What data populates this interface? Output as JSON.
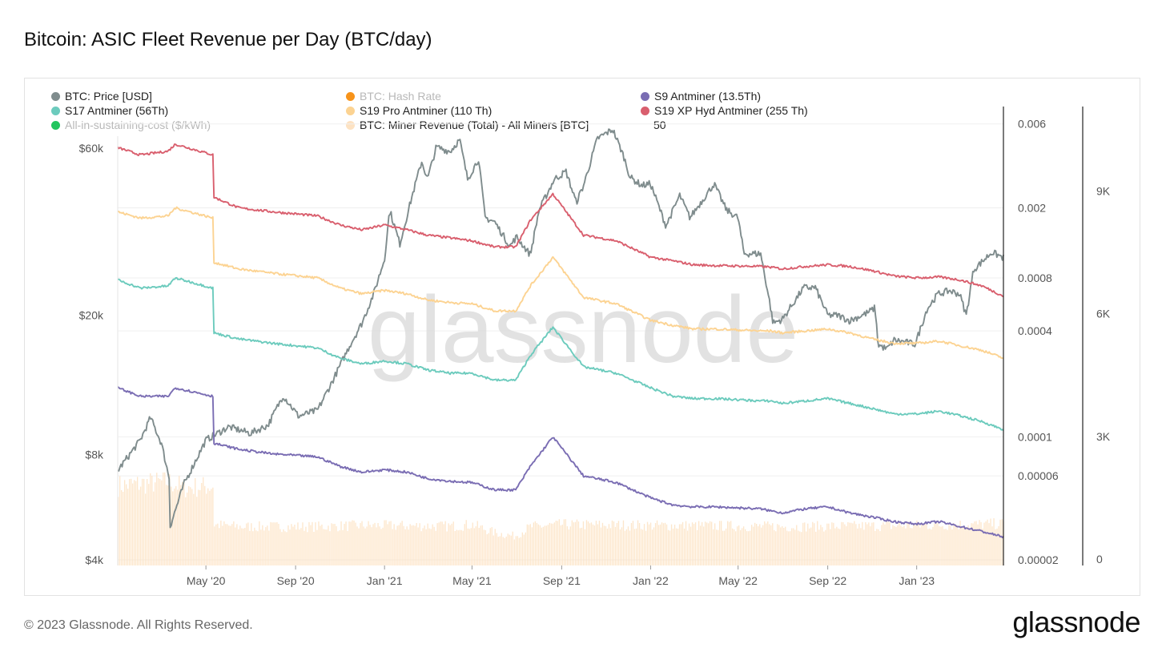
{
  "header": {
    "title": "Bitcoin: ASIC Fleet Revenue per Day (BTC/day)"
  },
  "footer": {
    "copyright": "© 2023 Glassnode. All Rights Reserved.",
    "brand": "glassnode"
  },
  "watermark": "glassnode",
  "legend": [
    {
      "label": "BTC: Price [USD]",
      "color": "#7f8c8d",
      "dimmed": false
    },
    {
      "label": "BTC: Hash Rate",
      "color": "#f7931a",
      "dimmed": true
    },
    {
      "label": "S9 Antminer (13.5Th)",
      "color": "#7a6db3",
      "dimmed": false
    },
    {
      "label": "S17 Antminer (56Th)",
      "color": "#6ccbbd",
      "dimmed": false
    },
    {
      "label": "S19 Pro Antminer (110 Th)",
      "color": "#fcd392",
      "dimmed": false
    },
    {
      "label": "S19 XP Hyd Antminer (255 Th)",
      "color": "#d95f6e",
      "dimmed": false
    },
    {
      "label": "All-in-sustaining-cost ($/kWh)",
      "color": "#22c55e",
      "dimmed": true
    },
    {
      "label": "BTC: Miner Revenue (Total) - All Miners [BTC]",
      "color": "#fde2c2",
      "dimmed": false
    }
  ],
  "legend_extra": "50",
  "chart_data": {
    "type": "line",
    "x_axis": {
      "start": "2020-01-01",
      "end": "2023-04-30",
      "tick_labels": [
        "May '20",
        "Sep '20",
        "Jan '21",
        "May '21",
        "Sep '21",
        "Jan '22",
        "May '22",
        "Sep '22",
        "Jan '23"
      ],
      "tick_dates": [
        "2020-05-01",
        "2020-09-01",
        "2021-01-01",
        "2021-05-01",
        "2021-09-01",
        "2022-01-01",
        "2022-05-01",
        "2022-09-01",
        "2023-01-01"
      ]
    },
    "y_axes": {
      "price_left": {
        "scale": "log",
        "range": [
          4000,
          65000
        ],
        "ticks": [
          4000,
          8000,
          20000,
          60000
        ],
        "tick_labels": [
          "$4k",
          "$8k",
          "$20k",
          "$60k"
        ]
      },
      "revenue_per_th_right": {
        "scale": "log",
        "range": [
          2e-05,
          0.007
        ],
        "ticks": [
          2e-05,
          6e-05,
          0.0001,
          0.0004,
          0.0008,
          0.002,
          0.006
        ],
        "tick_labels": [
          "0.00002",
          "0.00006",
          "0.0001",
          "0.0004",
          "0.0008",
          "0.002",
          "0.006"
        ]
      },
      "miner_revenue_far_right": {
        "scale": "linear",
        "range": [
          0,
          10500
        ],
        "ticks": [
          0,
          3000,
          6000,
          9000
        ],
        "tick_labels": [
          "0",
          "3K",
          "6K",
          "9K"
        ]
      }
    },
    "grid": "horizontal",
    "series": [
      {
        "name": "BTC: Price [USD]",
        "axis": "price_left",
        "style": "line",
        "x": [
          "2020-01-01",
          "2020-02-01",
          "2020-02-15",
          "2020-03-01",
          "2020-03-12",
          "2020-03-13",
          "2020-04-01",
          "2020-05-01",
          "2020-06-01",
          "2020-07-01",
          "2020-07-25",
          "2020-08-15",
          "2020-09-05",
          "2020-10-01",
          "2020-10-21",
          "2020-11-15",
          "2020-12-01",
          "2020-12-17",
          "2021-01-01",
          "2021-01-08",
          "2021-01-22",
          "2021-02-08",
          "2021-02-21",
          "2021-03-01",
          "2021-03-13",
          "2021-04-01",
          "2021-04-14",
          "2021-04-25",
          "2021-05-10",
          "2021-05-19",
          "2021-06-01",
          "2021-06-22",
          "2021-07-01",
          "2021-07-20",
          "2021-08-01",
          "2021-08-22",
          "2021-09-07",
          "2021-09-21",
          "2021-10-01",
          "2021-10-20",
          "2021-11-10",
          "2021-11-25",
          "2021-12-04",
          "2021-12-20",
          "2022-01-01",
          "2022-01-22",
          "2022-02-10",
          "2022-02-24",
          "2022-03-29",
          "2022-04-15",
          "2022-05-01",
          "2022-05-09",
          "2022-06-01",
          "2022-06-13",
          "2022-06-18",
          "2022-07-01",
          "2022-07-30",
          "2022-08-15",
          "2022-09-01",
          "2022-09-15",
          "2022-10-01",
          "2022-10-25",
          "2022-11-05",
          "2022-11-09",
          "2022-11-21",
          "2022-12-01",
          "2022-12-30",
          "2023-01-15",
          "2023-01-30",
          "2023-02-15",
          "2023-03-01",
          "2023-03-10",
          "2023-03-20",
          "2023-04-01",
          "2023-04-14",
          "2023-04-30"
        ],
        "values": [
          7200,
          8800,
          10200,
          8600,
          6800,
          5000,
          6600,
          8800,
          9600,
          9200,
          9700,
          11800,
          10300,
          10700,
          12900,
          16500,
          19000,
          23000,
          29000,
          40000,
          32000,
          44000,
          55000,
          49000,
          60500,
          58800,
          63500,
          49000,
          56000,
          38000,
          37000,
          31500,
          33500,
          29800,
          40000,
          49000,
          51500,
          42000,
          47000,
          64000,
          68000,
          57000,
          49500,
          47000,
          47500,
          36000,
          44000,
          38000,
          47500,
          40000,
          38000,
          30000,
          30000,
          22000,
          19000,
          19500,
          24000,
          24000,
          20000,
          20000,
          19300,
          20300,
          21000,
          16500,
          16000,
          17000,
          16550,
          20800,
          23000,
          23500,
          23000,
          20000,
          27000,
          28500,
          30300,
          29200
        ]
      },
      {
        "name": "S19 XP Hyd Antminer (255 Th)",
        "axis": "revenue_per_th_right",
        "style": "line",
        "x": [
          "2020-01-01",
          "2020-02-01",
          "2020-03-10",
          "2020-03-20",
          "2020-05-11",
          "2020-05-12",
          "2020-06-15",
          "2020-08-01",
          "2020-10-01",
          "2020-11-01",
          "2020-12-01",
          "2021-01-01",
          "2021-02-01",
          "2021-03-01",
          "2021-04-01",
          "2021-05-01",
          "2021-06-01",
          "2021-06-30",
          "2021-07-20",
          "2021-08-20",
          "2021-10-01",
          "2021-11-15",
          "2022-01-01",
          "2022-02-01",
          "2022-03-01",
          "2022-04-01",
          "2022-06-01",
          "2022-06-15",
          "2022-07-01",
          "2022-08-01",
          "2022-09-01",
          "2022-10-01",
          "2022-11-01",
          "2022-12-01",
          "2023-01-01",
          "2023-02-01",
          "2023-03-01",
          "2023-04-01",
          "2023-04-30"
        ],
        "values": [
          0.0044,
          0.004,
          0.0042,
          0.0046,
          0.004,
          0.0023,
          0.002,
          0.0019,
          0.0018,
          0.0016,
          0.0015,
          0.0016,
          0.0015,
          0.0014,
          0.00135,
          0.0013,
          0.0012,
          0.0012,
          0.0017,
          0.0024,
          0.0014,
          0.0013,
          0.00105,
          0.001,
          0.00095,
          0.00094,
          0.00093,
          0.00092,
          0.0009,
          0.00093,
          0.00095,
          0.00093,
          0.00088,
          0.00082,
          0.0008,
          0.00081,
          0.00078,
          0.00072,
          0.00063
        ]
      },
      {
        "name": "S19 Pro Antminer (110 Th)",
        "axis": "revenue_per_th_right",
        "style": "line",
        "x": [
          "2020-01-01",
          "2020-02-01",
          "2020-03-10",
          "2020-03-20",
          "2020-05-11",
          "2020-05-12",
          "2020-06-15",
          "2020-08-01",
          "2020-10-01",
          "2020-11-01",
          "2020-12-01",
          "2021-01-01",
          "2021-02-01",
          "2021-03-01",
          "2021-04-01",
          "2021-05-01",
          "2021-06-01",
          "2021-06-30",
          "2021-07-20",
          "2021-08-20",
          "2021-10-01",
          "2021-11-15",
          "2022-01-01",
          "2022-02-01",
          "2022-03-01",
          "2022-04-01",
          "2022-06-01",
          "2022-06-15",
          "2022-07-01",
          "2022-08-01",
          "2022-09-01",
          "2022-10-01",
          "2022-11-01",
          "2022-12-01",
          "2023-01-01",
          "2023-02-01",
          "2023-03-01",
          "2023-04-01",
          "2023-04-30"
        ],
        "values": [
          0.0019,
          0.00175,
          0.0018,
          0.002,
          0.00175,
          0.00098,
          0.0009,
          0.00085,
          0.0008,
          0.0007,
          0.00065,
          0.00068,
          0.00065,
          0.0006,
          0.00058,
          0.00057,
          0.00052,
          0.00052,
          0.00072,
          0.00105,
          0.00062,
          0.00057,
          0.00046,
          0.00043,
          0.00041,
          0.00041,
          0.0004,
          0.0004,
          0.00039,
          0.0004,
          0.00041,
          0.00039,
          0.00036,
          0.00034,
          0.00034,
          0.00035,
          0.00033,
          0.00031,
          0.00028
        ]
      },
      {
        "name": "S17 Antminer (56Th)",
        "axis": "revenue_per_th_right",
        "style": "line",
        "x": [
          "2020-01-01",
          "2020-02-01",
          "2020-03-10",
          "2020-03-20",
          "2020-05-11",
          "2020-05-12",
          "2020-06-15",
          "2020-08-01",
          "2020-10-01",
          "2020-11-01",
          "2020-12-01",
          "2021-01-01",
          "2021-02-01",
          "2021-03-01",
          "2021-04-01",
          "2021-05-01",
          "2021-06-01",
          "2021-06-30",
          "2021-07-20",
          "2021-08-20",
          "2021-10-01",
          "2021-11-15",
          "2022-01-01",
          "2022-02-01",
          "2022-03-01",
          "2022-04-01",
          "2022-06-01",
          "2022-06-15",
          "2022-07-01",
          "2022-08-01",
          "2022-09-01",
          "2022-10-01",
          "2022-11-01",
          "2022-12-01",
          "2023-01-01",
          "2023-02-01",
          "2023-03-01",
          "2023-04-01",
          "2023-04-30"
        ],
        "values": [
          0.00078,
          0.0007,
          0.00072,
          0.0008,
          0.0007,
          0.00039,
          0.00036,
          0.00034,
          0.00032,
          0.00028,
          0.00026,
          0.00027,
          0.00026,
          0.00024,
          0.00023,
          0.00023,
          0.00021,
          0.00021,
          0.00029,
          0.00042,
          0.00025,
          0.00023,
          0.00019,
          0.00017,
          0.000165,
          0.000165,
          0.00016,
          0.00016,
          0.000155,
          0.00016,
          0.000165,
          0.000155,
          0.000145,
          0.000135,
          0.000135,
          0.00014,
          0.000132,
          0.000122,
          0.00011
        ]
      },
      {
        "name": "S9 Antminer (13.5Th)",
        "axis": "revenue_per_th_right",
        "style": "line",
        "x": [
          "2020-01-01",
          "2020-02-01",
          "2020-03-10",
          "2020-03-20",
          "2020-05-11",
          "2020-05-12",
          "2020-06-15",
          "2020-08-01",
          "2020-10-01",
          "2020-11-01",
          "2020-12-01",
          "2021-01-01",
          "2021-02-01",
          "2021-03-01",
          "2021-04-01",
          "2021-05-01",
          "2021-06-01",
          "2021-06-30",
          "2021-07-20",
          "2021-08-20",
          "2021-10-01",
          "2021-11-15",
          "2022-01-01",
          "2022-02-01",
          "2022-03-01",
          "2022-04-01",
          "2022-06-01",
          "2022-06-15",
          "2022-07-01",
          "2022-08-01",
          "2022-09-01",
          "2022-10-01",
          "2022-11-01",
          "2022-12-01",
          "2023-01-01",
          "2023-02-01",
          "2023-03-01",
          "2023-04-01",
          "2023-04-30"
        ],
        "values": [
          0.00019,
          0.00017,
          0.00017,
          0.00019,
          0.00017,
          9.2e-05,
          8.5e-05,
          8e-05,
          7.7e-05,
          6.8e-05,
          6.3e-05,
          6.5e-05,
          6.3e-05,
          5.8e-05,
          5.6e-05,
          5.5e-05,
          5e-05,
          5e-05,
          6.8e-05,
          0.0001,
          6e-05,
          5.5e-05,
          4.5e-05,
          4.1e-05,
          4e-05,
          4e-05,
          3.9e-05,
          3.8e-05,
          3.7e-05,
          3.9e-05,
          4e-05,
          3.7e-05,
          3.5e-05,
          3.3e-05,
          3.2e-05,
          3.3e-05,
          3.1e-05,
          2.9e-05,
          2.7e-05
        ]
      },
      {
        "name": "BTC: Miner Revenue (Total) - All Miners [BTC]",
        "axis": "miner_revenue_far_right",
        "style": "bars",
        "x": [
          "2020-01-01",
          "2020-02-01",
          "2020-03-10",
          "2020-04-01",
          "2020-05-11",
          "2020-05-12",
          "2020-06-15",
          "2020-08-01",
          "2020-10-01",
          "2020-12-01",
          "2021-02-01",
          "2021-04-01",
          "2021-05-01",
          "2021-06-01",
          "2021-06-28",
          "2021-07-20",
          "2021-09-01",
          "2021-11-01",
          "2022-01-01",
          "2022-04-01",
          "2022-07-01",
          "2022-10-01",
          "2023-01-01",
          "2023-03-01",
          "2023-04-30"
        ],
        "values": [
          1950,
          2000,
          2050,
          1900,
          1950,
          1000,
          950,
          950,
          950,
          980,
          970,
          960,
          1000,
          800,
          720,
          950,
          1000,
          990,
          980,
          970,
          950,
          960,
          980,
          1000,
          1020
        ]
      }
    ]
  }
}
